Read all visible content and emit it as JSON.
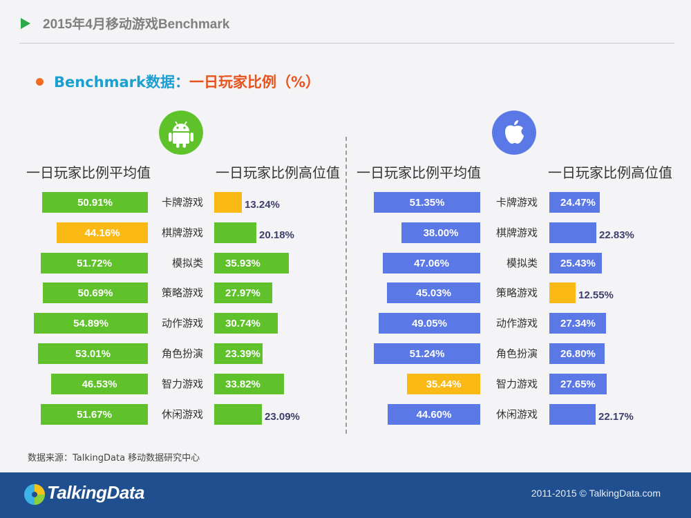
{
  "header": {
    "title": "2015年4月移动游戏Benchmark"
  },
  "subtitle": {
    "prefix": "Benchmark数据：",
    "main": "一日玩家比例（%）"
  },
  "icons": {
    "android": "android-icon",
    "apple": "apple-icon",
    "logo": "talkingdata-logo-icon"
  },
  "colors": {
    "green": "#5fc22a",
    "orange": "#fbb916",
    "blue": "#5a78e6",
    "footer": "#1f4f8f"
  },
  "chart_data": [
    {
      "type": "bar",
      "platform": "android",
      "categories": [
        "卡牌游戏",
        "棋牌游戏",
        "模拟类",
        "策略游戏",
        "动作游戏",
        "角色扮演",
        "智力游戏",
        "休闲游戏"
      ],
      "series": [
        {
          "name": "一日玩家比例平均值",
          "values": [
            50.91,
            44.16,
            51.72,
            50.69,
            54.89,
            53.01,
            46.53,
            51.67
          ],
          "labels": [
            "50.91%",
            "44.16%",
            "51.72%",
            "50.69%",
            "54.89%",
            "53.01%",
            "46.53%",
            "51.67%"
          ],
          "highlight": [
            false,
            true,
            false,
            false,
            false,
            false,
            false,
            false
          ]
        },
        {
          "name": "一日玩家比例高位值",
          "values": [
            13.24,
            20.18,
            35.93,
            27.97,
            30.74,
            23.39,
            33.82,
            23.09
          ],
          "labels": [
            "13.24%",
            "20.18%",
            "35.93%",
            "27.97%",
            "30.74%",
            "23.39%",
            "33.82%",
            "23.09%"
          ],
          "highlight": [
            true,
            false,
            false,
            false,
            false,
            false,
            false,
            false
          ]
        }
      ]
    },
    {
      "type": "bar",
      "platform": "ios",
      "categories": [
        "卡牌游戏",
        "棋牌游戏",
        "模拟类",
        "策略游戏",
        "动作游戏",
        "角色扮演",
        "智力游戏",
        "休闲游戏"
      ],
      "series": [
        {
          "name": "一日玩家比例平均值",
          "values": [
            51.35,
            38.0,
            47.06,
            45.03,
            49.05,
            51.24,
            35.44,
            44.6
          ],
          "labels": [
            "51.35%",
            "38.00%",
            "47.06%",
            "45.03%",
            "49.05%",
            "51.24%",
            "35.44%",
            "44.60%"
          ],
          "highlight": [
            false,
            false,
            false,
            false,
            false,
            false,
            true,
            false
          ]
        },
        {
          "name": "一日玩家比例高位值",
          "values": [
            24.47,
            22.83,
            25.43,
            12.55,
            27.34,
            26.8,
            27.65,
            22.17
          ],
          "labels": [
            "24.47%",
            "22.83%",
            "25.43%",
            "12.55%",
            "27.34%",
            "26.80%",
            "27.65%",
            "22.17%"
          ],
          "highlight": [
            false,
            false,
            false,
            true,
            false,
            false,
            false,
            false
          ]
        }
      ]
    }
  ],
  "source": "数据来源：TalkingData 移动数据研究中心",
  "footer": {
    "logo_text": "TalkingData",
    "copyright": "2011-2015 © TalkingData.com"
  }
}
